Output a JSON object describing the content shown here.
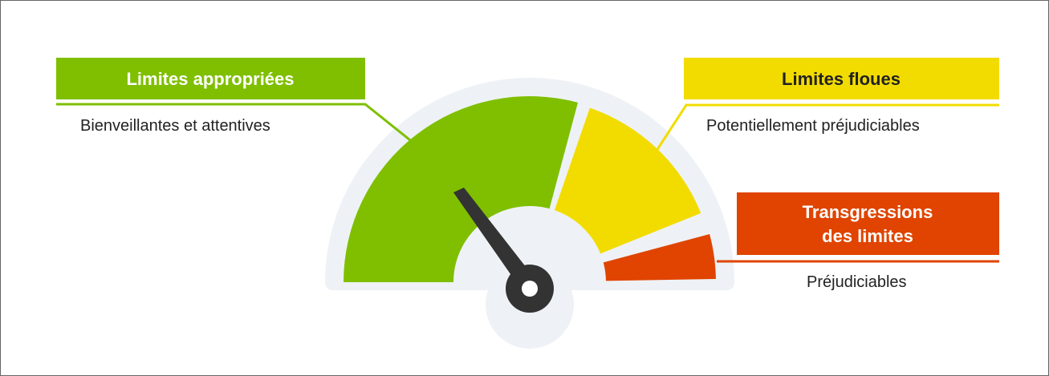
{
  "zones": [
    {
      "title": "Limites appropriées",
      "subtitle": "Bienveillantes et attentives"
    },
    {
      "title": "Limites floues",
      "subtitle": "Potentiellement préjudiciables"
    },
    {
      "title_lines": [
        "Transgressions",
        "des limites"
      ],
      "subtitle": "Préjudiciables"
    }
  ]
}
